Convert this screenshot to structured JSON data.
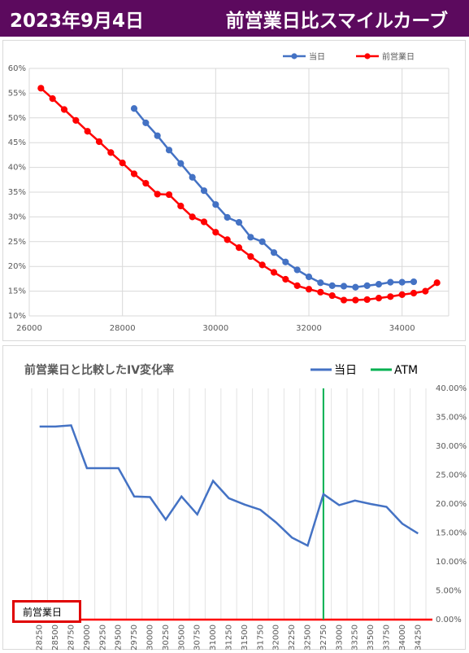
{
  "header": {
    "date": "2023年9月4日",
    "subtitle": "前営業日比スマイルカーブ"
  },
  "prev_day_tag": "前営業日",
  "chart_data": [
    {
      "type": "line",
      "title": "",
      "xlim": [
        26000,
        35000
      ],
      "ylim": [
        0.1,
        0.6
      ],
      "x_ticks": [
        "26000",
        "28000",
        "30000",
        "32000",
        "34000"
      ],
      "y_ticks": [
        "10%",
        "15%",
        "20%",
        "25%",
        "30%",
        "35%",
        "40%",
        "45%",
        "50%",
        "55%",
        "60%"
      ],
      "legend_position": "top-right",
      "series": [
        {
          "name": "当日",
          "color": "#4472c4",
          "points": [
            [
              28250,
              0.519
            ],
            [
              28500,
              0.49
            ],
            [
              28750,
              0.464
            ],
            [
              29000,
              0.435
            ],
            [
              29250,
              0.408
            ],
            [
              29500,
              0.38
            ],
            [
              29750,
              0.353
            ],
            [
              30000,
              0.325
            ],
            [
              30250,
              0.299
            ],
            [
              30500,
              0.289
            ],
            [
              30750,
              0.259
            ],
            [
              31000,
              0.25
            ],
            [
              31250,
              0.228
            ],
            [
              31500,
              0.209
            ],
            [
              31750,
              0.193
            ],
            [
              32000,
              0.179
            ],
            [
              32250,
              0.167
            ],
            [
              32500,
              0.161
            ],
            [
              32750,
              0.16
            ],
            [
              33000,
              0.158
            ],
            [
              33250,
              0.161
            ],
            [
              33500,
              0.164
            ],
            [
              33750,
              0.168
            ],
            [
              34000,
              0.168
            ],
            [
              34250,
              0.169
            ]
          ]
        },
        {
          "name": "前営業日",
          "color": "#ff0000",
          "points": [
            [
              26250,
              0.56
            ],
            [
              26500,
              0.539
            ],
            [
              26750,
              0.517
            ],
            [
              27000,
              0.495
            ],
            [
              27250,
              0.473
            ],
            [
              27500,
              0.452
            ],
            [
              27750,
              0.43
            ],
            [
              28000,
              0.409
            ],
            [
              28250,
              0.387
            ],
            [
              28500,
              0.368
            ],
            [
              28750,
              0.346
            ],
            [
              29000,
              0.345
            ],
            [
              29250,
              0.322
            ],
            [
              29500,
              0.3
            ],
            [
              29750,
              0.29
            ],
            [
              30000,
              0.269
            ],
            [
              30250,
              0.254
            ],
            [
              30500,
              0.238
            ],
            [
              30750,
              0.22
            ],
            [
              31000,
              0.203
            ],
            [
              31250,
              0.188
            ],
            [
              31500,
              0.174
            ],
            [
              31750,
              0.161
            ],
            [
              32000,
              0.154
            ],
            [
              32250,
              0.148
            ],
            [
              32500,
              0.141
            ],
            [
              32750,
              0.132
            ],
            [
              33000,
              0.132
            ],
            [
              33250,
              0.133
            ],
            [
              33500,
              0.136
            ],
            [
              33750,
              0.139
            ],
            [
              34000,
              0.143
            ],
            [
              34250,
              0.146
            ],
            [
              34500,
              0.15
            ],
            [
              34750,
              0.167
            ]
          ]
        }
      ]
    },
    {
      "type": "line",
      "title": "前営業日と比較したIV変化率",
      "categories": [
        "28250",
        "28500",
        "28750",
        "29000",
        "29250",
        "29500",
        "29750",
        "30000",
        "30250",
        "30500",
        "30750",
        "31000",
        "31250",
        "31500",
        "31750",
        "32000",
        "32250",
        "32500",
        "32750",
        "33000",
        "33250",
        "33500",
        "33750",
        "34000",
        "34250"
      ],
      "ylim": [
        0,
        0.4
      ],
      "y_ticks": [
        "0.00%",
        "5.00%",
        "10.00%",
        "15.00%",
        "20.00%",
        "25.00%",
        "30.00%",
        "35.00%",
        "40.00%"
      ],
      "legend_position": "top-right",
      "series": [
        {
          "name": "当日",
          "color": "#4472c4",
          "values": [
            0.334,
            0.334,
            0.336,
            0.262,
            0.262,
            0.262,
            0.213,
            0.212,
            0.173,
            0.213,
            0.182,
            0.24,
            0.21,
            0.199,
            0.19,
            0.168,
            0.142,
            0.128,
            0.217,
            0.198,
            0.206,
            0.2,
            0.195,
            0.166,
            0.149
          ]
        },
        {
          "name": "前営業日",
          "color": "#ff0000",
          "values": [
            0,
            0,
            0,
            0,
            0,
            0,
            0,
            0,
            0,
            0,
            0,
            0,
            0,
            0,
            0,
            0,
            0,
            0,
            0,
            0,
            0,
            0,
            0,
            0,
            0
          ]
        }
      ],
      "atm": {
        "name": "ATM",
        "color": "#00b050",
        "category": "32750"
      }
    }
  ]
}
